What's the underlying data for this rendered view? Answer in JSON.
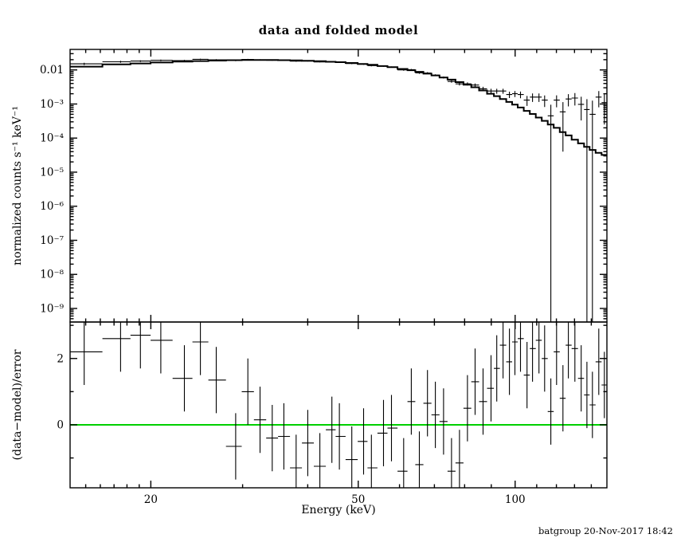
{
  "chart_data": {
    "type": "scatter",
    "subtype": "X-ray spectrum: data crosses with folded model histogram (top, log-log) and (data-model)/error residuals (bottom)",
    "title": "data and folded model",
    "xlabel": "Energy (keV)",
    "ylabel_top": "normalized counts s⁻¹ keV⁻¹",
    "ylabel_bottom": "(data−model)/error",
    "footer": "batgroup 20-Nov-2017 18:42",
    "legend_position": "none",
    "grid": false,
    "colors": {
      "data": "#000000",
      "model": "#000000",
      "zero_line": "#00d000",
      "frame": "#000000",
      "background": "#ffffff"
    },
    "axes": {
      "x_scale": "log",
      "xlim": [
        14,
        150
      ],
      "xticks_major": [
        20,
        50,
        100
      ],
      "xticks_minor": [
        15,
        16,
        17,
        18,
        19,
        30,
        40,
        60,
        70,
        80,
        90,
        110,
        120,
        130,
        140
      ],
      "top_y_scale": "log",
      "top_ylim": [
        4e-10,
        0.04
      ],
      "top_ytick_values": [
        0.01,
        0.001,
        0.0001,
        1e-05,
        1e-06,
        1e-07,
        1e-08,
        1e-09
      ],
      "top_ytick_labels": [
        "0.01",
        "10⁻³",
        "10⁻⁴",
        "10⁻⁵",
        "10⁻⁶",
        "10⁻⁷",
        "10⁻⁸",
        "10⁻⁹"
      ],
      "bottom_y_scale": "linear",
      "bottom_ylim": [
        -1.9,
        3.1
      ],
      "bottom_yticks_labeled": [
        0,
        2
      ],
      "bottom_ytick_labels": [
        "0",
        "2"
      ],
      "bottom_yticks_minor": [
        -1,
        1,
        3
      ]
    },
    "series": {
      "energy_kev": [
        14.9,
        17.5,
        19.1,
        20.9,
        23.2,
        24.9,
        26.7,
        29.1,
        30.7,
        32.4,
        34.2,
        36.0,
        38.0,
        40.0,
        42.2,
        44.5,
        46.0,
        48.6,
        51.2,
        53.0,
        55.9,
        57.9,
        61.1,
        63.2,
        65.5,
        67.9,
        70.3,
        72.9,
        75.5,
        78.2,
        81.0,
        83.8,
        86.8,
        89.9,
        92.2,
        94.8,
        97.5,
        99.9,
        102.4,
        105.4,
        108.0,
        111.1,
        113.9,
        117.1,
        120.1,
        123.5,
        126.5,
        130.2,
        133.9,
        137.3,
        140.7,
        144.7,
        148.3
      ],
      "data": [
        0.0151,
        0.0174,
        0.0182,
        0.0191,
        0.0188,
        0.0205,
        0.0199,
        0.0188,
        0.0203,
        0.0197,
        0.0192,
        0.0191,
        0.0181,
        0.0182,
        0.0172,
        0.0173,
        0.0167,
        0.0154,
        0.0147,
        0.0134,
        0.0129,
        0.0121,
        0.01,
        0.0102,
        0.0082,
        0.0081,
        0.007,
        0.006,
        0.0046,
        0.0039,
        0.0039,
        0.0036,
        0.0028,
        0.0024,
        0.0024,
        0.0024,
        0.0019,
        0.002,
        0.0019,
        0.0013,
        0.0016,
        0.0016,
        0.0013,
        0.00045,
        0.0013,
        0.00059,
        0.0014,
        0.0015,
        0.00098,
        0.00069,
        0.0005,
        0.0016,
        0.0011
      ],
      "data_err": [
        0.0012,
        0.0011,
        0.001,
        0.001,
        0.0009,
        0.0009,
        0.0008,
        0.0008,
        0.0008,
        0.0008,
        0.0007,
        0.0007,
        0.0007,
        0.0007,
        0.0007,
        0.0006,
        0.0006,
        0.0006,
        0.0006,
        0.0006,
        0.0005,
        0.0005,
        0.0005,
        0.0005,
        0.0005,
        0.0005,
        0.0004,
        0.0004,
        0.0004,
        0.0004,
        0.0004,
        0.0004,
        0.0004,
        0.0004,
        0.0004,
        0.0004,
        0.0004,
        0.0004,
        0.00042,
        0.00042,
        0.00045,
        0.00045,
        0.00048,
        0.0005,
        0.0005,
        0.00055,
        0.00055,
        0.0006,
        0.00065,
        0.0007,
        0.00075,
        0.0008,
        0.00085
      ],
      "model": [
        0.0125,
        0.0145,
        0.0155,
        0.0165,
        0.0175,
        0.0182,
        0.0188,
        0.0193,
        0.0195,
        0.0196,
        0.0195,
        0.0193,
        0.019,
        0.0186,
        0.0181,
        0.0174,
        0.0169,
        0.016,
        0.015,
        0.0142,
        0.013,
        0.0121,
        0.0107,
        0.0098,
        0.0088,
        0.0078,
        0.0069,
        0.006,
        0.0052,
        0.0044,
        0.0037,
        0.0031,
        0.0025,
        0.002,
        0.0017,
        0.0014,
        0.00115,
        0.00096,
        0.00079,
        0.00063,
        0.00051,
        0.0004,
        0.00032,
        0.00025,
        0.0002,
        0.00015,
        0.00012,
        9e-05,
        7e-05,
        5.5e-05,
        4.5e-05,
        3.7e-05,
        3.2e-05
      ],
      "residual": [
        2.2,
        2.6,
        2.7,
        2.55,
        1.4,
        2.5,
        1.35,
        -0.65,
        1.0,
        0.15,
        -0.4,
        -0.35,
        -1.3,
        -0.55,
        -1.25,
        -0.15,
        -0.35,
        -1.05,
        -0.5,
        -1.3,
        -0.25,
        -0.1,
        -1.4,
        0.7,
        -1.2,
        0.65,
        0.3,
        0.1,
        -1.4,
        -1.15,
        0.5,
        1.3,
        0.7,
        1.1,
        1.7,
        2.4,
        1.9,
        2.5,
        2.6,
        1.5,
        2.3,
        2.55,
        2.0,
        0.4,
        2.2,
        0.8,
        2.4,
        2.3,
        1.4,
        0.9,
        0.6,
        1.9,
        1.2
      ],
      "residual_err": 1
    }
  }
}
